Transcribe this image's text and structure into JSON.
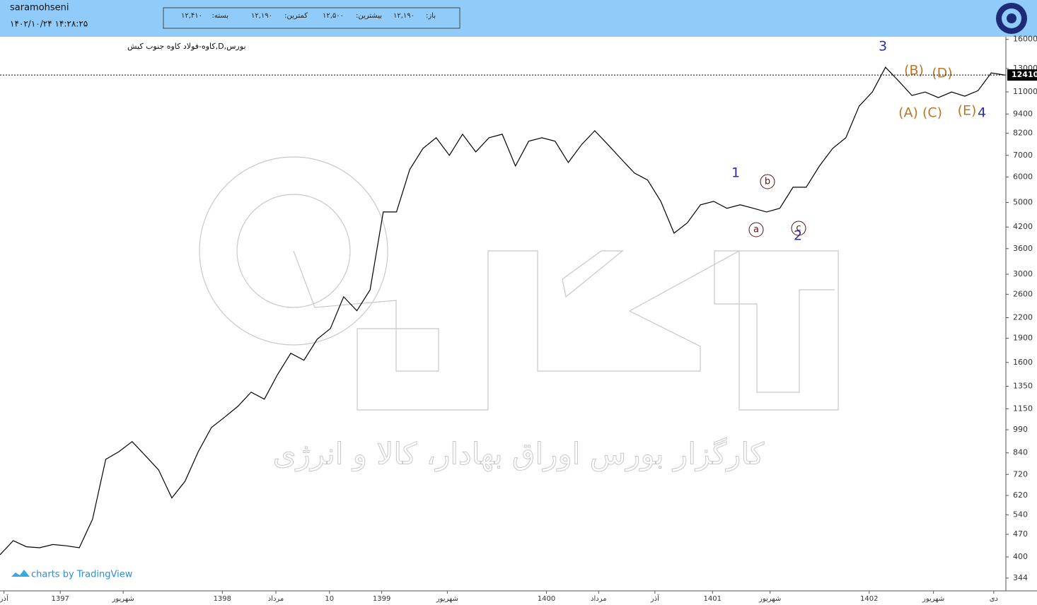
{
  "header": {
    "user": "saramohseni",
    "datetime": "۱۴۰۲/۱۰/۲۴ ۱۴:۲۸:۲۵",
    "quote": [
      {
        "label": "باز:",
        "value": "۱۲,۱۹۰"
      },
      {
        "label": "بیشترین:",
        "value": "۱۲,۵۰۰"
      },
      {
        "label": "کمترین:",
        "value": "۱۲,۱۹۰"
      },
      {
        "label": "بسته:",
        "value": "۱۲,۴۱۰"
      }
    ]
  },
  "watermark": "کارگزار بورس اوراق بهادار، کالا و انرژی",
  "footer": "charts by TradingView",
  "chart_data": {
    "type": "line",
    "title": "بورس,D,کاوه-فولاد کاوه جنوب کیش",
    "color": "#000000",
    "log_scale": true,
    "values": [
      406,
      449,
      430,
      427,
      437,
      433,
      427,
      523,
      802,
      847,
      910,
      823,
      744,
      609,
      686,
      847,
      1006,
      1083,
      1170,
      1294,
      1231,
      1468,
      1708,
      1625,
      1888,
      2037,
      2554,
      2312,
      2684,
      4676,
      4676,
      6326,
      7355,
      7936,
      7001,
      8137,
      7176,
      7936,
      8137,
      6487,
      7741,
      7936,
      7741,
      6651,
      7551,
      8340,
      7551,
      6820,
      6170,
      5871,
      5042,
      4019,
      4326,
      4920,
      5042,
      4799,
      4920,
      4799,
      4676,
      4799,
      5576,
      5576,
      6487,
      7355,
      7936,
      9939,
      10993,
      13113,
      11884,
      10724,
      10993,
      10566,
      10993,
      10669,
      11100,
      12600,
      12410
    ],
    "xlim": [
      0,
      75
    ],
    "xticks": [
      {
        "value": 0.3,
        "label": "آذر"
      },
      {
        "value": 4.5,
        "label": "1397"
      },
      {
        "value": 9.2,
        "label": "شهریور"
      },
      {
        "value": 16.6,
        "label": "1398"
      },
      {
        "value": 20.6,
        "label": "مرداد"
      },
      {
        "value": 24.6,
        "label": "10"
      },
      {
        "value": 28.5,
        "label": "1399"
      },
      {
        "value": 33.4,
        "label": "شهریور"
      },
      {
        "value": 40.8,
        "label": "1400"
      },
      {
        "value": 44.7,
        "label": "مرداد"
      },
      {
        "value": 48.9,
        "label": "آذر"
      },
      {
        "value": 53.2,
        "label": "1401"
      },
      {
        "value": 57.5,
        "label": "شهریور"
      },
      {
        "value": 64.9,
        "label": "1402"
      },
      {
        "value": 69.7,
        "label": "شهریور"
      },
      {
        "value": 74.2,
        "label": "دی"
      }
    ],
    "ylim": [
      314,
      16300
    ],
    "yticks": [
      344,
      400,
      470,
      540,
      620,
      720,
      840,
      990,
      1150,
      1350,
      1600,
      1900,
      2200,
      2600,
      3000,
      3600,
      4200,
      5000,
      6000,
      7000,
      8200,
      9400,
      11000,
      13000,
      16000
    ],
    "last_price": 12410,
    "last_price_color": "#000000",
    "annotations": [
      "1",
      "2",
      "3",
      "4",
      "(A)",
      "(B)",
      "(C)",
      "(D)",
      "(E)",
      "a",
      "b",
      "c"
    ]
  }
}
